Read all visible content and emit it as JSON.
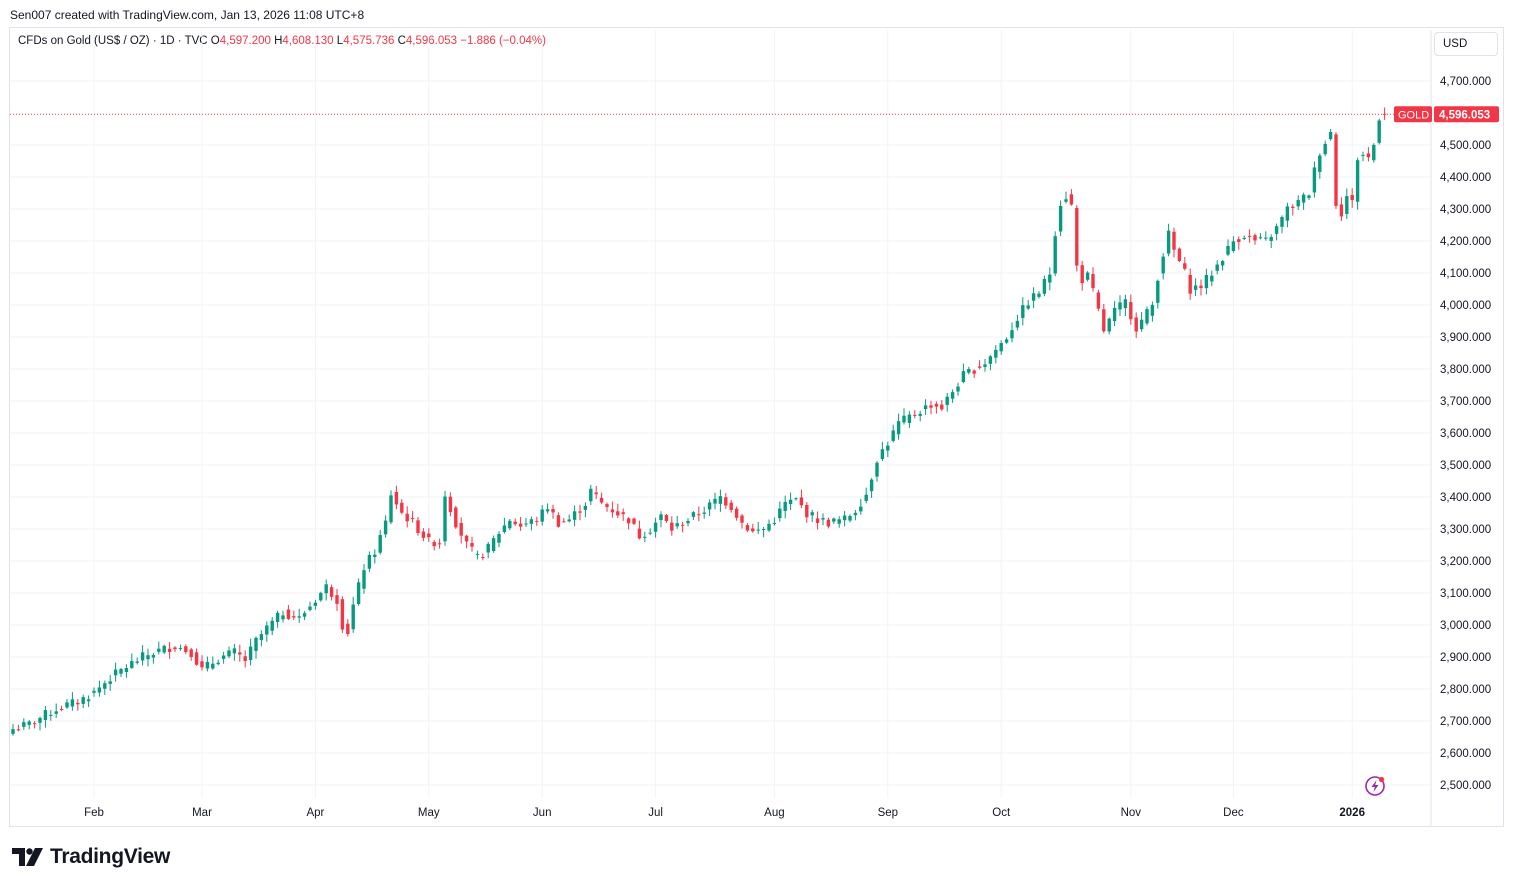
{
  "credit": "Sen007 created with TradingView.com, Jan 13, 2026 11:08 UTC+8",
  "legend": {
    "symbol": "CFDs on Gold (US$ / OZ) · 1D · TVC",
    "o_label": "O",
    "o_value": "4,597.200",
    "h_label": "H",
    "h_value": "4,608.130",
    "l_label": "L",
    "l_value": "4,575.736",
    "c_label": "C",
    "c_value": "4,596.053",
    "change": "−1.886 (−0.04%)"
  },
  "currency_button": "USD",
  "price_tag": {
    "symbol": "GOLD",
    "price": "4,596.053"
  },
  "brand": "TradingView",
  "icons": [
    "tradingview-logo-icon",
    "flash-icon"
  ],
  "colors": {
    "up": "#089981",
    "down": "#f23645",
    "grid": "#f0f3fa",
    "tag": "#f23645"
  },
  "chart_data": {
    "type": "candlestick",
    "title": "CFDs on Gold (US$ / OZ) · 1D · TVC",
    "ylim": [
      2450,
      4760
    ],
    "y_ticks": [
      2500,
      2600,
      2700,
      2800,
      2900,
      3000,
      3100,
      3200,
      3300,
      3400,
      3500,
      3600,
      3700,
      3800,
      3900,
      4000,
      4100,
      4200,
      4300,
      4400,
      4500,
      4700
    ],
    "y_tick_labels": [
      "2,500.000",
      "2,600.000",
      "2,700.000",
      "2,800.000",
      "2,900.000",
      "3,000.000",
      "3,100.000",
      "3,200.000",
      "3,300.000",
      "3,400.000",
      "3,500.000",
      "3,600.000",
      "3,700.000",
      "3,800.000",
      "3,900.000",
      "4,000.000",
      "4,100.000",
      "4,200.000",
      "4,300.000",
      "4,400.000",
      "4,500.000",
      "4,700.000"
    ],
    "x_ticks": [
      {
        "label": "Feb",
        "index": 15
      },
      {
        "label": "Mar",
        "index": 35
      },
      {
        "label": "Apr",
        "index": 56
      },
      {
        "label": "May",
        "index": 77
      },
      {
        "label": "Jun",
        "index": 98
      },
      {
        "label": "Jul",
        "index": 119
      },
      {
        "label": "Aug",
        "index": 141
      },
      {
        "label": "Sep",
        "index": 162
      },
      {
        "label": "Oct",
        "index": 183
      },
      {
        "label": "Nov",
        "index": 207
      },
      {
        "label": "Dec",
        "index": 226
      },
      {
        "label": "2026",
        "index": 248
      }
    ],
    "last_price": 4596.053,
    "path": [
      [
        0,
        2675
      ],
      [
        3,
        2690
      ],
      [
        6,
        2720
      ],
      [
        9,
        2745
      ],
      [
        12,
        2760
      ],
      [
        15,
        2790
      ],
      [
        18,
        2835
      ],
      [
        21,
        2870
      ],
      [
        24,
        2900
      ],
      [
        27,
        2920
      ],
      [
        30,
        2935
      ],
      [
        33,
        2915
      ],
      [
        35,
        2860
      ],
      [
        38,
        2895
      ],
      [
        41,
        2915
      ],
      [
        43,
        2890
      ],
      [
        45,
        2950
      ],
      [
        47,
        2990
      ],
      [
        50,
        3040
      ],
      [
        53,
        3020
      ],
      [
        55,
        3060
      ],
      [
        58,
        3120
      ],
      [
        60,
        3080
      ],
      [
        61,
        3000
      ],
      [
        62,
        2980
      ],
      [
        63,
        3060
      ],
      [
        65,
        3180
      ],
      [
        67,
        3230
      ],
      [
        69,
        3320
      ],
      [
        70,
        3410
      ],
      [
        72,
        3350
      ],
      [
        74,
        3320
      ],
      [
        77,
        3260
      ],
      [
        79,
        3260
      ],
      [
        80,
        3410
      ],
      [
        82,
        3320
      ],
      [
        84,
        3250
      ],
      [
        86,
        3210
      ],
      [
        88,
        3240
      ],
      [
        90,
        3290
      ],
      [
        92,
        3330
      ],
      [
        94,
        3310
      ],
      [
        97,
        3330
      ],
      [
        99,
        3370
      ],
      [
        101,
        3320
      ],
      [
        103,
        3330
      ],
      [
        106,
        3380
      ],
      [
        107,
        3420
      ],
      [
        109,
        3380
      ],
      [
        112,
        3350
      ],
      [
        114,
        3330
      ],
      [
        116,
        3280
      ],
      [
        118,
        3300
      ],
      [
        120,
        3340
      ],
      [
        122,
        3300
      ],
      [
        125,
        3330
      ],
      [
        128,
        3360
      ],
      [
        131,
        3400
      ],
      [
        133,
        3370
      ],
      [
        135,
        3320
      ],
      [
        137,
        3290
      ],
      [
        139,
        3300
      ],
      [
        141,
        3330
      ],
      [
        143,
        3380
      ],
      [
        145,
        3390
      ],
      [
        147,
        3350
      ],
      [
        149,
        3330
      ],
      [
        151,
        3320
      ],
      [
        154,
        3330
      ],
      [
        156,
        3360
      ],
      [
        158,
        3410
      ],
      [
        160,
        3520
      ],
      [
        162,
        3570
      ],
      [
        164,
        3630
      ],
      [
        166,
        3650
      ],
      [
        168,
        3670
      ],
      [
        170,
        3690
      ],
      [
        172,
        3680
      ],
      [
        174,
        3730
      ],
      [
        176,
        3780
      ],
      [
        178,
        3800
      ],
      [
        180,
        3820
      ],
      [
        182,
        3860
      ],
      [
        184,
        3900
      ],
      [
        186,
        3960
      ],
      [
        188,
        4010
      ],
      [
        190,
        4040
      ],
      [
        192,
        4100
      ],
      [
        193,
        4230
      ],
      [
        194,
        4320
      ],
      [
        195,
        4340
      ],
      [
        196,
        4310
      ],
      [
        197,
        4120
      ],
      [
        198,
        4080
      ],
      [
        199,
        4090
      ],
      [
        200,
        4040
      ],
      [
        201,
        3980
      ],
      [
        202,
        3920
      ],
      [
        204,
        3980
      ],
      [
        206,
        4010
      ],
      [
        208,
        3930
      ],
      [
        209,
        3950
      ],
      [
        211,
        4000
      ],
      [
        212,
        4090
      ],
      [
        213,
        4160
      ],
      [
        214,
        4220
      ],
      [
        215,
        4170
      ],
      [
        217,
        4100
      ],
      [
        218,
        4050
      ],
      [
        220,
        4060
      ],
      [
        222,
        4100
      ],
      [
        224,
        4150
      ],
      [
        226,
        4200
      ],
      [
        228,
        4220
      ],
      [
        230,
        4200
      ],
      [
        232,
        4200
      ],
      [
        234,
        4240
      ],
      [
        236,
        4300
      ],
      [
        238,
        4320
      ],
      [
        240,
        4350
      ],
      [
        241,
        4420
      ],
      [
        242,
        4480
      ],
      [
        243,
        4510
      ],
      [
        244,
        4540
      ],
      [
        245,
        4320
      ],
      [
        246,
        4290
      ],
      [
        247,
        4340
      ],
      [
        248,
        4320
      ],
      [
        249,
        4460
      ],
      [
        250,
        4470
      ],
      [
        251,
        4460
      ],
      [
        252,
        4500
      ],
      [
        253,
        4590
      ],
      [
        254,
        4596.053
      ]
    ]
  }
}
